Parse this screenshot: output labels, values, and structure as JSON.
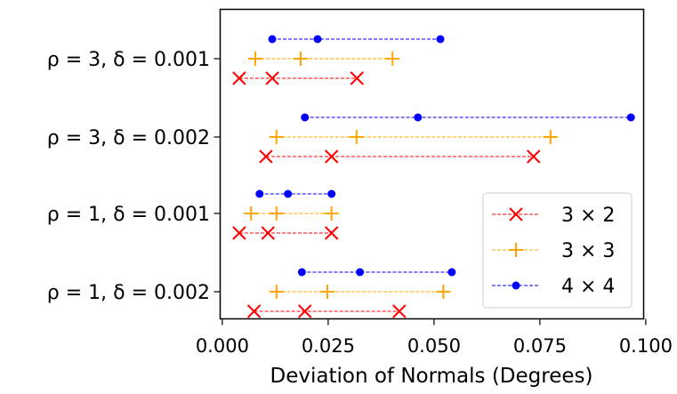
{
  "chart_data": {
    "type": "scatter",
    "title": "",
    "xlabel": "Deviation of Normals (Degrees)",
    "ylabel": "",
    "xlim": [
      -0.0005,
      0.0995
    ],
    "xticks": [
      0.0,
      0.025,
      0.05,
      0.075,
      0.1
    ],
    "xtick_labels": [
      "0.000",
      "0.025",
      "0.050",
      "0.075",
      "0.100"
    ],
    "grid": false,
    "legend_position": "lower-right",
    "categories": [
      "ρ = 3, δ = 0.001",
      "ρ = 3, δ = 0.002",
      "ρ = 1, δ = 0.001",
      "ρ = 1, δ = 0.002"
    ],
    "series": [
      {
        "name": "3 × 2",
        "color": "#ff0000",
        "marker": "x",
        "values": [
          [
            0.004,
            0.0118,
            0.0318
          ],
          [
            0.0103,
            0.0258,
            0.0735
          ],
          [
            0.004,
            0.0108,
            0.0258
          ],
          [
            0.0075,
            0.0195,
            0.0418
          ]
        ]
      },
      {
        "name": "3 × 3",
        "color": "#ffa500",
        "marker": "+",
        "values": [
          [
            0.0078,
            0.0185,
            0.0402
          ],
          [
            0.0128,
            0.0317,
            0.0775
          ],
          [
            0.0068,
            0.0128,
            0.0258
          ],
          [
            0.0128,
            0.0248,
            0.0522
          ]
        ]
      },
      {
        "name": "4 × 4",
        "color": "#0000ff",
        "marker": "o",
        "values": [
          [
            0.0118,
            0.0225,
            0.0515
          ],
          [
            0.0195,
            0.0462,
            0.0965
          ],
          [
            0.0088,
            0.0155,
            0.0258
          ],
          [
            0.0188,
            0.0325,
            0.0542
          ]
        ]
      }
    ]
  }
}
